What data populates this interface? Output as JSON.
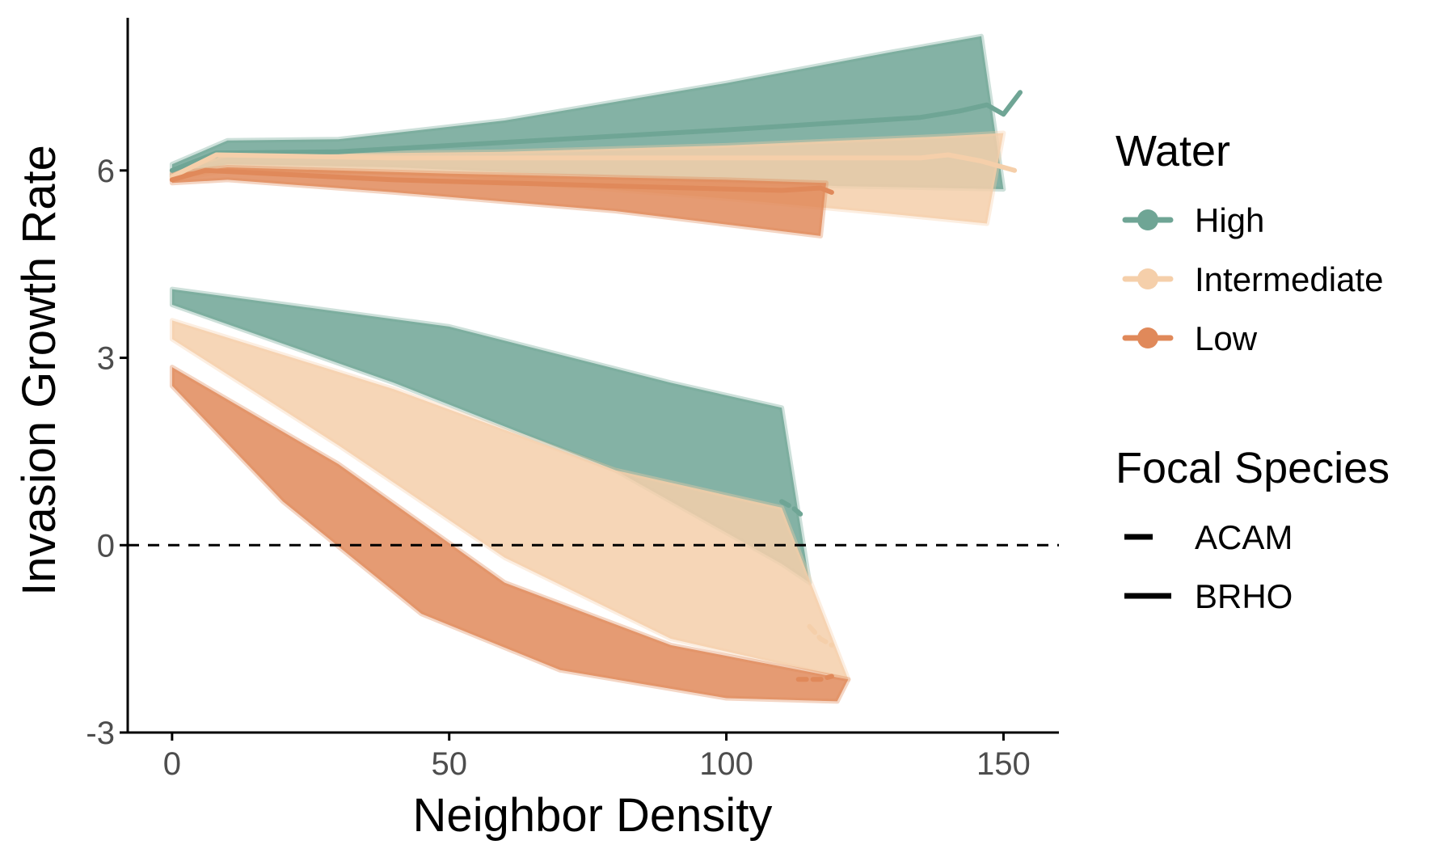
{
  "chart_data": {
    "type": "line",
    "title": "",
    "xlabel": "Neighbor Density",
    "ylabel": "Invasion Growth Rate",
    "xlim": [
      -8,
      160
    ],
    "ylim": [
      -3,
      8.6
    ],
    "x_ticks": [
      0,
      50,
      100,
      150
    ],
    "x_tick_labels": [
      "0",
      "50",
      "100",
      "150"
    ],
    "y_ticks": [
      -3,
      0,
      3,
      6
    ],
    "y_tick_labels": [
      "-3",
      "0",
      "3",
      "6"
    ],
    "reference_line": {
      "y": 0,
      "style": "dashed"
    },
    "grid": false,
    "legend_placement": "right",
    "colors": {
      "High": "#6fa595",
      "Intermediate": "#f5cfaa",
      "Low": "#e0895a"
    },
    "legend": {
      "water": {
        "title": "Water",
        "entries": [
          "High",
          "Intermediate",
          "Low"
        ]
      },
      "focal_species": {
        "title": "Focal Species",
        "entries": [
          "ACAM",
          "BRHO"
        ]
      }
    },
    "series": [
      {
        "water": "High",
        "focal_species": "BRHO",
        "band_upper": [
          [
            0,
            6.1
          ],
          [
            10,
            6.48
          ],
          [
            30,
            6.5
          ],
          [
            60,
            6.8
          ],
          [
            100,
            7.4
          ],
          [
            130,
            7.9
          ],
          [
            146,
            8.15
          ]
        ],
        "band_lower": [
          [
            0,
            5.9
          ],
          [
            10,
            6.1
          ],
          [
            40,
            6.05
          ],
          [
            80,
            5.9
          ],
          [
            120,
            5.75
          ],
          [
            150,
            5.7
          ]
        ],
        "mean": [
          [
            0,
            6.0
          ],
          [
            8,
            6.28
          ],
          [
            30,
            6.3
          ],
          [
            60,
            6.45
          ],
          [
            100,
            6.65
          ],
          [
            135,
            6.85
          ],
          [
            142,
            6.95
          ],
          [
            147,
            7.05
          ],
          [
            150,
            6.9
          ],
          [
            153,
            7.25
          ]
        ]
      },
      {
        "water": "Intermediate",
        "focal_species": "BRHO",
        "band_upper": [
          [
            0,
            6.0
          ],
          [
            10,
            6.25
          ],
          [
            60,
            6.3
          ],
          [
            100,
            6.4
          ],
          [
            140,
            6.55
          ],
          [
            150,
            6.6
          ]
        ],
        "band_lower": [
          [
            0,
            5.85
          ],
          [
            10,
            6.0
          ],
          [
            50,
            5.9
          ],
          [
            100,
            5.55
          ],
          [
            130,
            5.3
          ],
          [
            147,
            5.15
          ]
        ],
        "mean": [
          [
            0,
            5.9
          ],
          [
            8,
            6.25
          ],
          [
            40,
            6.2
          ],
          [
            100,
            6.2
          ],
          [
            135,
            6.2
          ],
          [
            140,
            6.25
          ],
          [
            146,
            6.15
          ],
          [
            152,
            6.0
          ]
        ]
      },
      {
        "water": "Low",
        "focal_species": "BRHO",
        "band_upper": [
          [
            0,
            5.95
          ],
          [
            10,
            6.05
          ],
          [
            50,
            5.95
          ],
          [
            100,
            5.85
          ],
          [
            118,
            5.8
          ]
        ],
        "band_lower": [
          [
            0,
            5.8
          ],
          [
            10,
            5.85
          ],
          [
            40,
            5.65
          ],
          [
            80,
            5.35
          ],
          [
            117,
            4.95
          ]
        ],
        "mean": [
          [
            0,
            5.85
          ],
          [
            6,
            6.0
          ],
          [
            40,
            5.85
          ],
          [
            80,
            5.75
          ],
          [
            110,
            5.68
          ],
          [
            117,
            5.72
          ],
          [
            119,
            5.65
          ]
        ]
      },
      {
        "water": "High",
        "focal_species": "ACAM",
        "band_upper": [
          [
            0,
            4.1
          ],
          [
            50,
            3.5
          ],
          [
            90,
            2.6
          ],
          [
            110,
            2.2
          ]
        ],
        "band_lower": [
          [
            0,
            3.85
          ],
          [
            40,
            2.6
          ],
          [
            80,
            1.2
          ],
          [
            110,
            -0.3
          ],
          [
            115,
            -0.6
          ]
        ],
        "mean": [
          [
            110,
            0.7
          ],
          [
            112,
            0.6
          ],
          [
            114,
            0.45
          ]
        ]
      },
      {
        "water": "Intermediate",
        "focal_species": "ACAM",
        "band_upper": [
          [
            0,
            3.6
          ],
          [
            40,
            2.5
          ],
          [
            80,
            1.2
          ],
          [
            110,
            0.6
          ]
        ],
        "band_lower": [
          [
            0,
            3.3
          ],
          [
            30,
            1.6
          ],
          [
            60,
            -0.2
          ],
          [
            90,
            -1.5
          ],
          [
            122,
            -2.15
          ]
        ],
        "mean": [
          [
            115,
            -1.3
          ],
          [
            117,
            -1.5
          ],
          [
            119,
            -1.6
          ]
        ]
      },
      {
        "water": "Low",
        "focal_species": "ACAM",
        "band_upper": [
          [
            0,
            2.85
          ],
          [
            30,
            1.3
          ],
          [
            60,
            -0.6
          ],
          [
            90,
            -1.6
          ],
          [
            122,
            -2.15
          ]
        ],
        "band_lower": [
          [
            0,
            2.55
          ],
          [
            20,
            0.7
          ],
          [
            45,
            -1.1
          ],
          [
            70,
            -2.0
          ],
          [
            100,
            -2.45
          ],
          [
            120,
            -2.5
          ]
        ],
        "mean": [
          [
            113,
            -2.15
          ],
          [
            117,
            -2.15
          ],
          [
            119,
            -2.1
          ]
        ]
      }
    ]
  }
}
